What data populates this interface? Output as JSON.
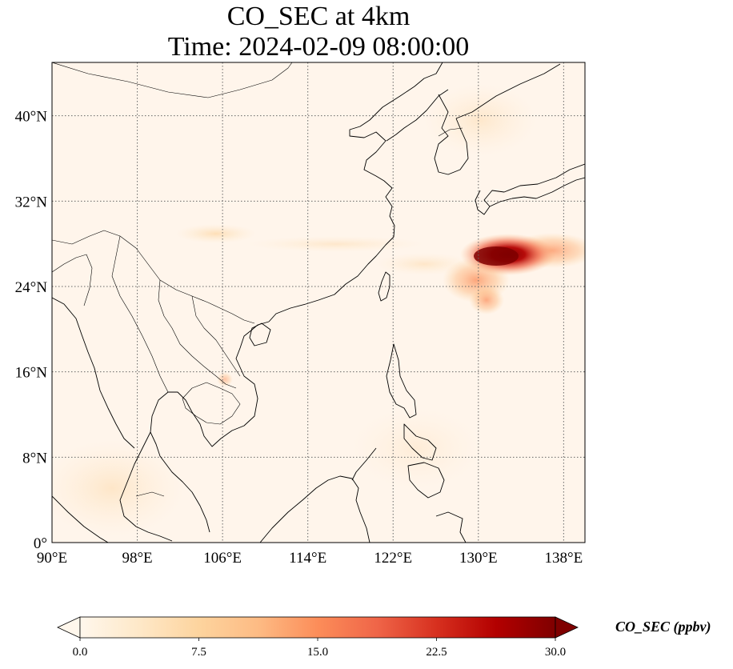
{
  "title": {
    "line1": "CO_SEC at 4km",
    "line2": "Time: 2024-02-09 08:00:00"
  },
  "map": {
    "lon_range": [
      90,
      140
    ],
    "lat_range": [
      0,
      45
    ],
    "lon_ticks": [
      "90°E",
      "98°E",
      "106°E",
      "114°E",
      "122°E",
      "130°E",
      "138°E"
    ],
    "lat_ticks": [
      "0°",
      "8°N",
      "16°N",
      "24°N",
      "32°N",
      "40°N"
    ],
    "lon_tick_values": [
      90,
      98,
      106,
      114,
      122,
      130,
      138
    ],
    "lat_tick_values": [
      0,
      8,
      16,
      24,
      32,
      40
    ],
    "gridlines": true,
    "background_color": "#fff5eb",
    "plumes": [
      {
        "name": "east-china-sea-plume-core",
        "lon": 132.0,
        "lat": 26.6,
        "value": 30
      },
      {
        "name": "east-china-sea-plume-south",
        "lon": 130.0,
        "lat": 24.2,
        "value": 18
      },
      {
        "name": "pacific-plume-east",
        "lon": 136.5,
        "lat": 27.5,
        "value": 14
      },
      {
        "name": "sichuan-band",
        "lon": 104.5,
        "lat": 29.0,
        "value": 6
      },
      {
        "name": "cambodia-spot",
        "lon": 106.0,
        "lat": 15.4,
        "value": 6
      }
    ]
  },
  "colorbar": {
    "label": "CO_SEC (ppbv)",
    "min": 0.0,
    "max": 30.0,
    "ticks": [
      "0.0",
      "7.5",
      "15.0",
      "22.5",
      "30.0"
    ],
    "tick_values": [
      0,
      7.5,
      15,
      22.5,
      30
    ],
    "extend": "both",
    "colormap": "OrRd",
    "colors": [
      "#fff7ec",
      "#fee8c8",
      "#fdd49e",
      "#fdbb84",
      "#fc8d59",
      "#ef6548",
      "#d7301f",
      "#b30000",
      "#7f0000"
    ]
  }
}
